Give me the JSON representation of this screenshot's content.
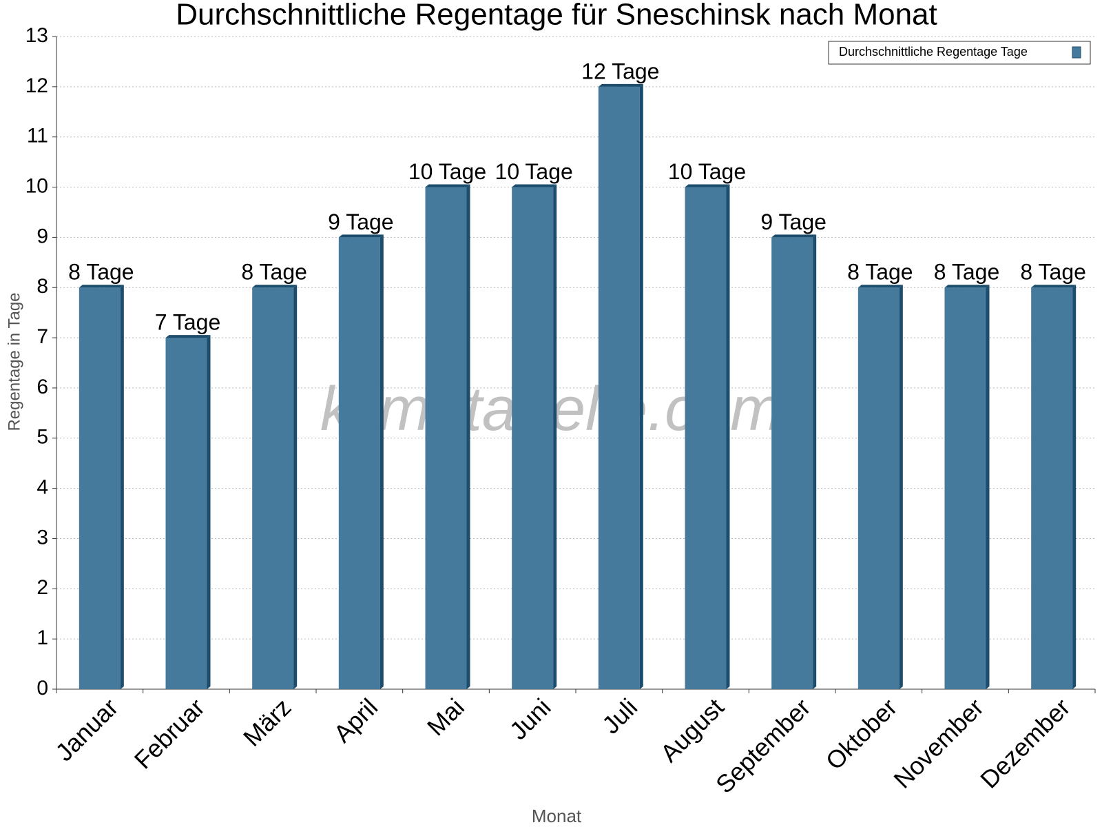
{
  "chart_data": {
    "type": "bar",
    "title": "Durchschnittliche Regentage für Sneschinsk nach Monat",
    "x_label": "Monat",
    "y_label": "Regentage in Tage",
    "watermark": "klimatabelle.com",
    "legend_position": "top-right",
    "grid": true,
    "categories": [
      "Januar",
      "Februar",
      "März",
      "April",
      "Mai",
      "Juni",
      "Juli",
      "August",
      "September",
      "Oktober",
      "November",
      "Dezember"
    ],
    "series": [
      {
        "name": "Durchschnittliche Regentage Tage",
        "color": "#467a9c",
        "values": [
          8,
          7,
          8,
          9,
          10,
          10,
          12,
          10,
          9,
          8,
          8,
          8
        ],
        "value_labels": [
          "8 Tage",
          "7 Tage",
          "8 Tage",
          "9 Tage",
          "10 Tage",
          "10 Tage",
          "12 Tage",
          "10 Tage",
          "9 Tage",
          "8 Tage",
          "8 Tage",
          "8 Tage"
        ]
      }
    ],
    "ylim": [
      0,
      13
    ],
    "yticks": [
      0,
      1,
      2,
      3,
      4,
      5,
      6,
      7,
      8,
      9,
      10,
      11,
      12,
      13
    ]
  }
}
